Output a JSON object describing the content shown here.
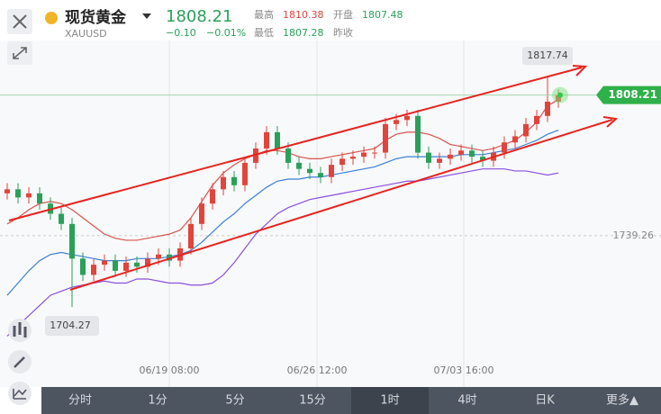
{
  "header": {
    "name": "现货黄金",
    "symbol": "XAUUSD",
    "price": "1808.21",
    "change": "−0.10",
    "change_pct": "−0.01%",
    "high_label": "最高",
    "high": "1810.38",
    "open_label": "开盘",
    "open": "1807.48",
    "low_label": "最低",
    "low": "1807.28",
    "prev_close_label": "昨收"
  },
  "toolbar": {
    "tabs": [
      "分时",
      "1分",
      "5分",
      "15分",
      "1时",
      "4时",
      "日K",
      "更多▲"
    ],
    "active": 4
  },
  "chart_data": {
    "type": "candlestick",
    "up_color": "#e0443c",
    "down_color": "#2aa05a",
    "xlim": [
      0,
      51
    ],
    "xticks": [
      {
        "value": 15,
        "label": "06/19 08:00"
      },
      {
        "value": 28.67,
        "label": "06/26 12:00"
      },
      {
        "value": 42.25,
        "label": "07/03 16:00"
      }
    ],
    "ylim": [
      1665,
      1835
    ],
    "yticks": [
      1739.26
    ],
    "open": [
      1760,
      1762,
      1758,
      1760,
      1755,
      1750,
      1745,
      1728,
      1720,
      1725,
      1727,
      1722,
      1726,
      1724,
      1728,
      1730,
      1727,
      1733,
      1745,
      1755,
      1762,
      1768,
      1764,
      1775,
      1782,
      1790,
      1782,
      1775,
      1772,
      1770,
      1768,
      1774,
      1777,
      1778,
      1780,
      1780,
      1794,
      1796,
      1798,
      1780,
      1775,
      1777,
      1779,
      1781,
      1778,
      1776,
      1780,
      1785,
      1788,
      1794,
      1798,
      1805
    ],
    "high": [
      1765,
      1765,
      1763,
      1763,
      1758,
      1753,
      1748,
      1731,
      1728,
      1730,
      1730,
      1729,
      1729,
      1731,
      1733,
      1733,
      1736,
      1748,
      1758,
      1765,
      1771,
      1771,
      1778,
      1785,
      1793,
      1793,
      1785,
      1778,
      1775,
      1773,
      1777,
      1780,
      1781,
      1783,
      1783,
      1797,
      1799,
      1801,
      1801,
      1783,
      1780,
      1782,
      1784,
      1784,
      1781,
      1783,
      1788,
      1791,
      1797,
      1801,
      1817.74,
      1811
    ],
    "low": [
      1757,
      1755,
      1755,
      1752,
      1747,
      1742,
      1704.27,
      1717,
      1717,
      1722,
      1719,
      1719,
      1721,
      1721,
      1725,
      1724,
      1724,
      1730,
      1742,
      1752,
      1759,
      1761,
      1761,
      1772,
      1779,
      1779,
      1772,
      1769,
      1767,
      1765,
      1765,
      1771,
      1774,
      1775,
      1777,
      1777,
      1791,
      1793,
      1777,
      1772,
      1772,
      1774,
      1776,
      1775,
      1773,
      1773,
      1777,
      1782,
      1785,
      1791,
      1795,
      1802
    ],
    "close": [
      1762,
      1758,
      1760,
      1755,
      1750,
      1745,
      1728,
      1720,
      1725,
      1727,
      1722,
      1726,
      1724,
      1728,
      1730,
      1727,
      1733,
      1745,
      1755,
      1762,
      1768,
      1764,
      1775,
      1782,
      1790,
      1782,
      1775,
      1772,
      1770,
      1768,
      1774,
      1777,
      1778,
      1780,
      1780,
      1794,
      1796,
      1798,
      1780,
      1775,
      1777,
      1779,
      1781,
      1778,
      1776,
      1780,
      1785,
      1788,
      1794,
      1798,
      1805,
      1808.21
    ],
    "series": [
      {
        "color": "#d9534f",
        "values": [
          1745,
          1748,
          1752,
          1755,
          1756,
          1755,
          1752,
          1748,
          1744,
          1740,
          1738,
          1737,
          1737,
          1738,
          1739,
          1740,
          1742,
          1748,
          1756,
          1764,
          1770,
          1774,
          1777,
          1779,
          1781,
          1781,
          1780,
          1778,
          1777,
          1777,
          1778,
          1779,
          1780,
          1781,
          1782,
          1786,
          1789,
          1790,
          1790,
          1789,
          1787,
          1784,
          1783,
          1782,
          1781,
          1782,
          1784,
          1786,
          1790,
          1795,
          1803,
          1806
        ]
      },
      {
        "color": "#3b7fd9",
        "values": [
          1710,
          1716,
          1722,
          1727,
          1730,
          1731,
          1730,
          1729,
          1728,
          1727,
          1727,
          1727,
          1728,
          1728,
          1728,
          1729,
          1730,
          1732,
          1736,
          1741,
          1746,
          1750,
          1755,
          1759,
          1763,
          1766,
          1767,
          1767,
          1768,
          1768,
          1769,
          1770,
          1771,
          1772,
          1773,
          1775,
          1777,
          1778,
          1778,
          1778,
          1778,
          1778,
          1779,
          1779,
          1779,
          1780,
          1781,
          1782,
          1784,
          1786,
          1789,
          1791
        ]
      },
      {
        "color": "#8a4fe0",
        "values": [
          1690,
          1695,
          1700,
          1705,
          1710,
          1712,
          1714,
          1715,
          1716,
          1717,
          1716,
          1716,
          1718,
          1718,
          1717,
          1716,
          1716,
          1715,
          1715,
          1716,
          1720,
          1726,
          1733,
          1740,
          1745,
          1750,
          1753,
          1755,
          1757,
          1758,
          1759,
          1760,
          1761,
          1762,
          1763,
          1764,
          1765,
          1766,
          1766,
          1767,
          1768,
          1769,
          1770,
          1771,
          1772,
          1772,
          1772,
          1771,
          1771,
          1770,
          1769,
          1770
        ]
      }
    ]
  }
}
